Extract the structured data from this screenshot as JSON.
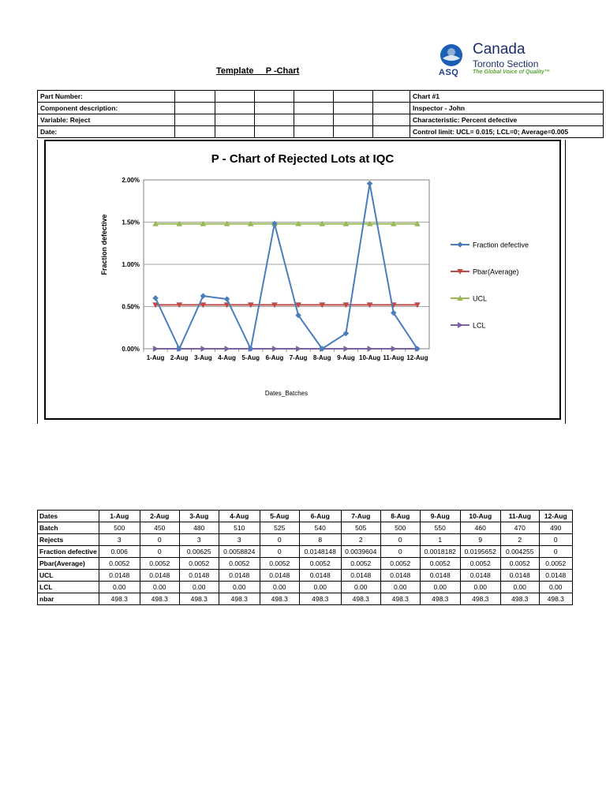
{
  "header": {
    "title": "Template     P -Chart",
    "logo": {
      "asq": "ASQ",
      "canada": "Canada",
      "section": "Toronto Section",
      "tagline": "The Global Voice of Quality™"
    }
  },
  "info_table": {
    "left": [
      "Part Number:",
      "Component description:",
      "Variable: Reject",
      "Date:"
    ],
    "right": [
      "Chart #1",
      "Inspector - John",
      "Characteristic: Percent defective",
      "Control limit: UCL= 0.015; LCL=0; Average=0.005"
    ]
  },
  "chart_data": {
    "type": "line",
    "title": "P - Chart of Rejected Lots at IQC",
    "xlabel": "Dates_Batches",
    "ylabel": "Fraction defective",
    "categories": [
      "1-Aug",
      "2-Aug",
      "3-Aug",
      "4-Aug",
      "5-Aug",
      "6-Aug",
      "7-Aug",
      "8-Aug",
      "9-Aug",
      "10-Aug",
      "11-Aug",
      "12-Aug"
    ],
    "ylim": [
      0,
      0.02
    ],
    "yticks": [
      "0.00%",
      "0.50%",
      "1.00%",
      "1.50%",
      "2.00%"
    ],
    "grid": true,
    "legend_position": "right",
    "series": [
      {
        "name": "Fraction defective",
        "color": "#4a7ebb",
        "marker": "diamond",
        "values": [
          0.006,
          0,
          0.00625,
          0.0058824,
          0,
          0.0148148,
          0.0039604,
          0,
          0.0018182,
          0.0195652,
          0.004255,
          0
        ]
      },
      {
        "name": "Pbar(Average)",
        "color": "#be4b48",
        "marker": "triangle-down",
        "values": [
          0.0052,
          0.0052,
          0.0052,
          0.0052,
          0.0052,
          0.0052,
          0.0052,
          0.0052,
          0.0052,
          0.0052,
          0.0052,
          0.0052
        ]
      },
      {
        "name": "UCL",
        "color": "#98b954",
        "marker": "triangle-up",
        "values": [
          0.0148,
          0.0148,
          0.0148,
          0.0148,
          0.0148,
          0.0148,
          0.0148,
          0.0148,
          0.0148,
          0.0148,
          0.0148,
          0.0148
        ]
      },
      {
        "name": "LCL",
        "color": "#7d60a0",
        "marker": "triangle-right",
        "values": [
          0,
          0,
          0,
          0,
          0,
          0,
          0,
          0,
          0,
          0,
          0,
          0
        ]
      }
    ]
  },
  "data_table": {
    "rows": [
      [
        "Dates",
        "1-Aug",
        "2-Aug",
        "3-Aug",
        "4-Aug",
        "5-Aug",
        "6-Aug",
        "7-Aug",
        "8-Aug",
        "9-Aug",
        "10-Aug",
        "11-Aug",
        "12-Aug"
      ],
      [
        "Batch",
        "500",
        "450",
        "480",
        "510",
        "525",
        "540",
        "505",
        "500",
        "550",
        "460",
        "470",
        "490"
      ],
      [
        "Rejects",
        "3",
        "0",
        "3",
        "3",
        "0",
        "8",
        "2",
        "0",
        "1",
        "9",
        "2",
        "0"
      ],
      [
        "Fraction defective",
        "0.006",
        "0",
        "0.00625",
        "0.0058824",
        "0",
        "0.0148148",
        "0.0039604",
        "0",
        "0.0018182",
        "0.0195652",
        "0.004255",
        "0"
      ],
      [
        "Pbar(Average)",
        "0.0052",
        "0.0052",
        "0.0052",
        "0.0052",
        "0.0052",
        "0.0052",
        "0.0052",
        "0.0052",
        "0.0052",
        "0.0052",
        "0.0052",
        "0.0052"
      ],
      [
        "UCL",
        "0.0148",
        "0.0148",
        "0.0148",
        "0.0148",
        "0.0148",
        "0.0148",
        "0.0148",
        "0.0148",
        "0.0148",
        "0.0148",
        "0.0148",
        "0.0148"
      ],
      [
        "LCL",
        "0.00",
        "0.00",
        "0.00",
        "0.00",
        "0.00",
        "0.00",
        "0.00",
        "0.00",
        "0.00",
        "0.00",
        "0.00",
        "0.00"
      ],
      [
        "nbar",
        "498.3",
        "498.3",
        "498.3",
        "498.3",
        "498.3",
        "498.3",
        "498.3",
        "498.3",
        "498.3",
        "498.3",
        "498.3",
        "498.3"
      ]
    ]
  }
}
